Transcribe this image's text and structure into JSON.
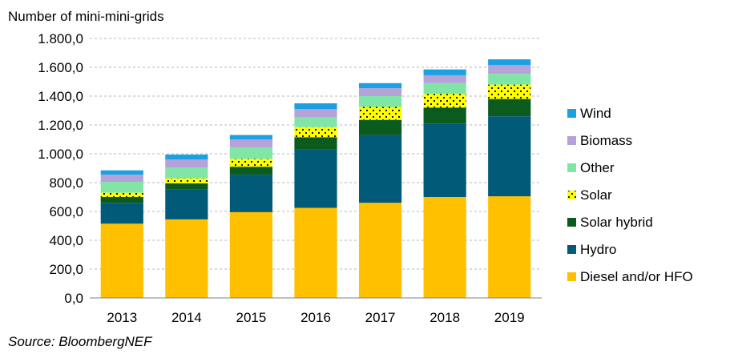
{
  "chart_data": {
    "type": "bar",
    "stacked": true,
    "ylabel": "Number of mini-mini-grids",
    "xlabel": "",
    "ylim": [
      0,
      1800
    ],
    "y_ticks": [
      "0,0",
      "200,0",
      "400,0",
      "600,0",
      "800,0",
      "1.000,0",
      "1.200,0",
      "1.400,0",
      "1.600,0",
      "1.800,0"
    ],
    "categories": [
      "2013",
      "2014",
      "2015",
      "2016",
      "2017",
      "2018",
      "2019"
    ],
    "series": [
      {
        "name": "Diesel and/or HFO",
        "color": "#FFC000",
        "pattern": "solid",
        "values": [
          515,
          545,
          595,
          625,
          660,
          700,
          705
        ]
      },
      {
        "name": "Hydro",
        "color": "#005A78",
        "pattern": "solid",
        "values": [
          145,
          210,
          260,
          405,
          470,
          510,
          555
        ]
      },
      {
        "name": "Solar hybrid",
        "color": "#0B5A1E",
        "pattern": "solid",
        "values": [
          40,
          40,
          55,
          85,
          105,
          110,
          120
        ]
      },
      {
        "name": "Solar",
        "color": "#FFFF00",
        "pattern": "dots",
        "values": [
          30,
          35,
          55,
          70,
          90,
          95,
          100
        ]
      },
      {
        "name": "Other",
        "color": "#7FE6A6",
        "pattern": "solid",
        "values": [
          75,
          75,
          80,
          70,
          75,
          75,
          75
        ]
      },
      {
        "name": "Biomass",
        "color": "#B4A2D8",
        "pattern": "solid",
        "values": [
          50,
          55,
          55,
          55,
          55,
          55,
          60
        ]
      },
      {
        "name": "Wind",
        "color": "#1BA1E2",
        "pattern": "solid",
        "values": [
          30,
          35,
          30,
          40,
          35,
          40,
          40
        ]
      }
    ],
    "legend_position": "right",
    "legend_order": [
      "Wind",
      "Biomass",
      "Other",
      "Solar",
      "Solar hybrid",
      "Hydro",
      "Diesel and/or HFO"
    ],
    "grid": true,
    "source": "Source: BloombergNEF"
  }
}
